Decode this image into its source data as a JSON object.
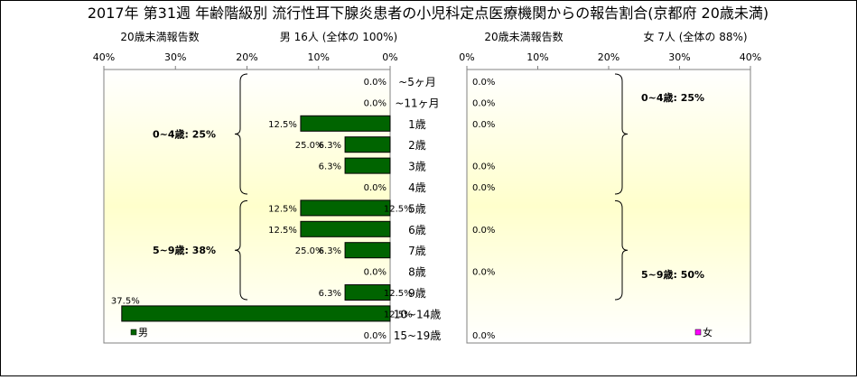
{
  "title": "2017年 第31週 年齢階級別 流行性耳下腺炎患者の小児科定点医療機関からの報告割合(京都府 20歳未満)",
  "colors": {
    "male_fill": "#006400",
    "female_fill": "#ff00ff",
    "bar_stroke": "#000000",
    "plot_bg_center": "#ffffcc",
    "plot_bg_edge": "#ffffff",
    "axis": "#808080"
  },
  "chart_data": [
    {
      "type": "bar",
      "orientation": "horizontal",
      "direction": "right-to-left",
      "header_left": "20歳未満報告数",
      "header_right": "男 16人 (全体の 100%)",
      "xlim": [
        0,
        40
      ],
      "ticks": [
        40,
        30,
        20,
        10,
        0
      ],
      "tick_labels": [
        "40%",
        "30%",
        "20%",
        "10%",
        "0%"
      ],
      "categories": [
        "~5ヶ月",
        "~11ヶ月",
        "1歳",
        "2歳",
        "3歳",
        "4歳",
        "5歳",
        "6歳",
        "7歳",
        "8歳",
        "9歳",
        "10~14歳",
        "15~19歳"
      ],
      "series": [
        {
          "name": "男",
          "values": [
            0.0,
            0.0,
            12.5,
            6.3,
            6.3,
            0.0,
            12.5,
            12.5,
            6.3,
            0.0,
            6.3,
            37.5,
            0.0
          ],
          "labels": [
            "0.0%",
            "0.0%",
            "12.5%",
            "6.3%",
            "6.3%",
            "0.0%",
            "12.5%",
            "12.5%",
            "6.3%",
            "0.0%",
            "6.3%",
            "37.5%",
            "0.0%"
          ]
        }
      ],
      "groups": [
        {
          "label": "0~4歳: 25%",
          "from": 0,
          "to": 5
        },
        {
          "label": "5~9歳: 38%",
          "from": 6,
          "to": 10
        }
      ],
      "legend": "bottom-left"
    },
    {
      "type": "bar",
      "orientation": "horizontal",
      "direction": "left-to-right",
      "header_left": "20歳未満報告数",
      "header_right": "女 7人 (全体の 88%)",
      "xlim": [
        0,
        40
      ],
      "ticks": [
        0,
        10,
        20,
        30,
        40
      ],
      "tick_labels": [
        "0%",
        "10%",
        "20%",
        "30%",
        "40%"
      ],
      "categories": [
        "~5ヶ月",
        "~11ヶ月",
        "1歳",
        "2歳",
        "3歳",
        "4歳",
        "5歳",
        "6歳",
        "7歳",
        "8歳",
        "9歳",
        "10~14歳",
        "15~19歳"
      ],
      "series": [
        {
          "name": "女",
          "values": [
            0.0,
            0.0,
            0.0,
            25.0,
            0.0,
            0.0,
            12.5,
            0.0,
            25.0,
            0.0,
            12.5,
            12.5,
            0.0
          ],
          "labels": [
            "0.0%",
            "0.0%",
            "0.0%",
            "25.0%",
            "0.0%",
            "0.0%",
            "12.5%",
            "0.0%",
            "25.0%",
            "0.0%",
            "12.5%",
            "12.5%",
            "0.0%"
          ]
        }
      ],
      "groups": [
        {
          "label": "0~4歳: 25%",
          "from": 0,
          "to": 5
        },
        {
          "label": "5~9歳: 50%",
          "from": 6,
          "to": 10
        }
      ],
      "legend": "bottom-right"
    }
  ]
}
